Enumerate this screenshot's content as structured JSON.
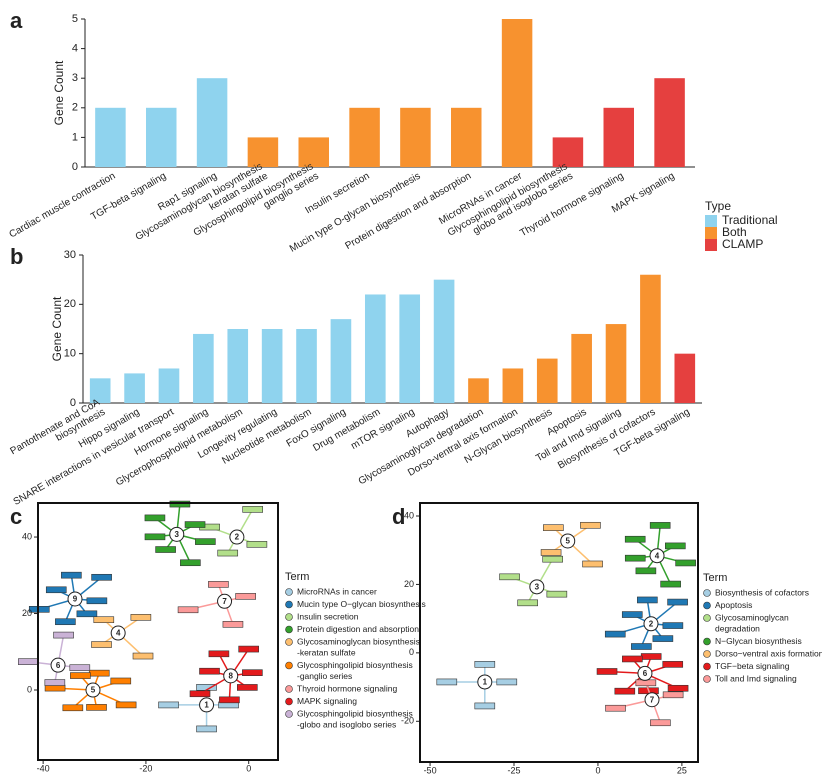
{
  "chart_data": [
    {
      "type": "bar",
      "panel": "a",
      "ylabel": "Gene Count",
      "categories": [
        "Cardiac muscle contraction",
        "TGF-beta signaling",
        "Rap1 signaling",
        "Glycosaminoglycan biosynthesis\nkeratan sulfate",
        "Glycosphingolipid biosynthesis\nganglio series",
        "Insulin secretion",
        "Mucin type O-glycan biosynthesis",
        "Protein digestion and absorption",
        "MicroRNAs in cancer",
        "Glycosphingolipid biosynthesis\nglobo and isoglobo series",
        "Thyroid hormone signaling",
        "MAPK signaling"
      ],
      "series": [
        {
          "name": "Traditional",
          "color": "#8fd3ee",
          "values": [
            2,
            2,
            3,
            null,
            null,
            null,
            null,
            null,
            null,
            null,
            null,
            null
          ]
        },
        {
          "name": "Both",
          "color": "#f7922f",
          "values": [
            null,
            null,
            null,
            1,
            1,
            2,
            2,
            2,
            5,
            null,
            null,
            null
          ]
        },
        {
          "name": "CLAMP",
          "color": "#e5403f",
          "values": [
            null,
            null,
            null,
            null,
            null,
            null,
            null,
            null,
            null,
            1,
            2,
            3
          ]
        }
      ],
      "ylim": [
        0,
        5
      ],
      "yticks": [
        0,
        1,
        2,
        3,
        4,
        5
      ],
      "legend_title": "Type"
    },
    {
      "type": "bar",
      "panel": "b",
      "ylabel": "Gene Count",
      "categories": [
        "Pantothenate and CoA\nbiosynthesis",
        "Hippo signaling",
        "SNARE interactions in vesicular transport",
        "Hormone signaling",
        "Glycerophospholipid metabolism",
        "Longevity regulating",
        "Nucleotide metabolism",
        "FoxO signaling",
        "Drug metabolism",
        "mTOR signaling",
        "Autophagy",
        "Glycosaminoglycan degradation",
        "Dorso-ventral axis formation",
        "N-Glycan biosynthesis",
        "Apoptosis",
        "Toll and Imd signaling",
        "Biosynthesis of cofactors",
        "TGF-beta signaling"
      ],
      "series": [
        {
          "color": "#8fd3ee",
          "values": [
            5,
            6,
            7,
            14,
            15,
            15,
            15,
            17,
            22,
            22,
            25,
            null,
            null,
            null,
            null,
            null,
            null,
            null
          ]
        },
        {
          "color": "#f7922f",
          "values": [
            null,
            null,
            null,
            null,
            null,
            null,
            null,
            null,
            null,
            null,
            null,
            5,
            7,
            9,
            14,
            16,
            26,
            null
          ]
        },
        {
          "color": "#e5403f",
          "values": [
            null,
            null,
            null,
            null,
            null,
            null,
            null,
            null,
            null,
            null,
            null,
            null,
            null,
            null,
            null,
            null,
            null,
            10
          ]
        }
      ],
      "ylim": [
        0,
        30
      ],
      "yticks": [
        0,
        10,
        20,
        30
      ]
    },
    {
      "type": "network",
      "panel": "c",
      "legend_title": "Term",
      "xlim": [
        -41,
        5.7
      ],
      "ylim": [
        -18.3,
        48.9
      ],
      "xticks": [
        -40,
        -20,
        0
      ],
      "yticks": [
        0,
        20,
        40
      ],
      "terms": [
        {
          "label": [
            "MicroRNAs in cancer"
          ],
          "color": "#a6cee3"
        },
        {
          "label": [
            "Mucin type O−glycan biosynthesis"
          ],
          "color": "#1f78b4"
        },
        {
          "label": [
            "Insulin secretion"
          ],
          "color": "#b2df8a"
        },
        {
          "label": [
            "Protein digestion and absorption"
          ],
          "color": "#33a02c"
        },
        {
          "label": [
            "Glycosaminoglycan biosynthesis",
            "-keratan sulfate"
          ],
          "color": "#fdbf6f"
        },
        {
          "label": [
            "Glycosphingolipid biosynthesis",
            "-ganglio series"
          ],
          "color": "#ff7f00"
        },
        {
          "label": [
            "Thyroid hormone signaling"
          ],
          "color": "#fb9a99"
        },
        {
          "label": [
            "MAPK signaling"
          ],
          "color": "#e31a1c"
        },
        {
          "label": [
            "Glycosphingolipid biosynthesis",
            "-globo and isoglobo series"
          ],
          "color": "#cab2d6"
        }
      ],
      "hubs": [
        {
          "label": 1,
          "x": -8.2,
          "y": -3.9
        },
        {
          "label": 9,
          "x": -33.8,
          "y": 23.8
        },
        {
          "label": 2,
          "x": -2.3,
          "y": 40
        },
        {
          "label": 3,
          "x": -14,
          "y": 40.7
        },
        {
          "label": 4,
          "x": -25.4,
          "y": 14.9
        },
        {
          "label": 5,
          "x": -30.3,
          "y": 0
        },
        {
          "label": 7,
          "x": -4.7,
          "y": 23.2
        },
        {
          "label": 8,
          "x": -3.5,
          "y": 3.7
        },
        {
          "label": 6,
          "x": -37.1,
          "y": 6.5
        }
      ]
    },
    {
      "type": "network",
      "panel": "d",
      "legend_title": "Term",
      "xlim": [
        -53,
        29.8
      ],
      "ylim": [
        -31.9,
        43.8
      ],
      "xticks": [
        -50,
        -25,
        0,
        25
      ],
      "yticks": [
        -20,
        0,
        20,
        40
      ],
      "terms": [
        {
          "label": [
            "Biosynthesis of cofactors"
          ],
          "color": "#a6cee3"
        },
        {
          "label": [
            "Apoptosis"
          ],
          "color": "#1f78b4"
        },
        {
          "label": [
            "Glycosaminoglycan",
            "degradation"
          ],
          "color": "#b2df8a"
        },
        {
          "label": [
            "N−Glycan biosynthesis"
          ],
          "color": "#33a02c"
        },
        {
          "label": [
            "Dorso−ventral axis formation"
          ],
          "color": "#fdbf6f"
        },
        {
          "label": [
            "TGF−beta signaling"
          ],
          "color": "#e31a1c"
        },
        {
          "label": [
            "Toll and Imd signaling"
          ],
          "color": "#fb9a99"
        }
      ],
      "hubs": [
        {
          "label": 1,
          "x": -33.7,
          "y": -8.5
        },
        {
          "label": 2,
          "x": 15.8,
          "y": 8.5
        },
        {
          "label": 3,
          "x": -18.2,
          "y": 19.3
        },
        {
          "label": 4,
          "x": 17.6,
          "y": 28.4
        },
        {
          "label": 5,
          "x": -9,
          "y": 32.7
        },
        {
          "label": 6,
          "x": 14,
          "y": -6
        },
        {
          "label": 7,
          "x": 16.1,
          "y": -13.7
        }
      ]
    }
  ]
}
